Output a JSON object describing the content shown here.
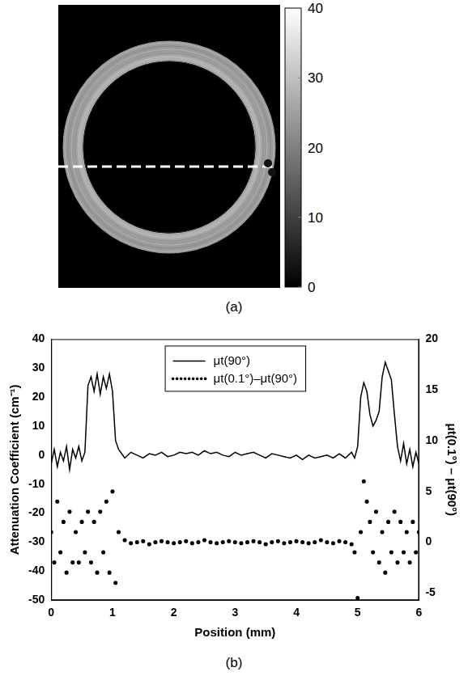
{
  "figure": {
    "panel_labels": [
      "(a)",
      "(b)"
    ]
  },
  "image": {
    "colorbar": {
      "range": [
        0,
        40
      ],
      "ticks": [
        0,
        10,
        20,
        30,
        40
      ]
    }
  },
  "chart_data": {
    "type": "line",
    "xlabel": "Position (mm)",
    "ylabel": "Attenuation Coefficient (cm⁻¹)",
    "y2label": "μt(0.1°) – μt(90°)",
    "xlim": [
      0,
      6
    ],
    "xticks": [
      0,
      1,
      2,
      3,
      4,
      5,
      6
    ],
    "ylim": [
      -50,
      40
    ],
    "yticks": [
      -50,
      -40,
      -30,
      -20,
      -10,
      0,
      10,
      20,
      30,
      40
    ],
    "y2lim": [
      -5.71,
      20
    ],
    "y2ticks": [
      -5,
      0,
      5,
      10,
      15,
      20
    ],
    "grid": false,
    "legend": "top",
    "series": [
      {
        "name": "μt(90°)",
        "color": "#000000",
        "line_style": "solid",
        "marker": "none",
        "x": [
          0,
          0.05,
          0.1,
          0.15,
          0.2,
          0.25,
          0.3,
          0.35,
          0.4,
          0.45,
          0.5,
          0.55,
          0.6,
          0.65,
          0.7,
          0.75,
          0.8,
          0.85,
          0.9,
          0.95,
          1.0,
          1.05,
          1.1,
          1.2,
          1.3,
          1.4,
          1.5,
          1.6,
          1.7,
          1.8,
          1.9,
          2.0,
          2.1,
          2.2,
          2.3,
          2.4,
          2.5,
          2.6,
          2.7,
          2.8,
          2.9,
          3.0,
          3.1,
          3.2,
          3.3,
          3.4,
          3.5,
          3.6,
          3.7,
          3.8,
          3.9,
          4.0,
          4.1,
          4.2,
          4.3,
          4.4,
          4.5,
          4.6,
          4.7,
          4.8,
          4.9,
          4.95,
          5.0,
          5.05,
          5.1,
          5.15,
          5.2,
          5.25,
          5.3,
          5.35,
          5.4,
          5.45,
          5.5,
          5.55,
          5.6,
          5.65,
          5.7,
          5.75,
          5.8,
          5.85,
          5.9,
          5.95,
          6.0
        ],
        "values": [
          -3,
          2,
          -4,
          1,
          -2,
          3,
          -5,
          2,
          -1,
          3,
          -2,
          1,
          24,
          27,
          22,
          28,
          21,
          27,
          23,
          28,
          22,
          5,
          2,
          -1,
          1,
          0,
          -1,
          0.5,
          0,
          1,
          -0.5,
          0,
          1,
          0.5,
          1,
          0,
          1.5,
          0.5,
          1,
          0,
          -0.5,
          1,
          0,
          0.5,
          1,
          0,
          -1,
          0.5,
          0,
          -0.5,
          -1,
          0,
          -1.5,
          0,
          -1,
          -0.5,
          0,
          -1,
          0.5,
          -1,
          1,
          -1,
          3,
          20,
          25,
          22,
          14,
          10,
          12,
          15,
          27,
          32,
          29,
          26,
          14,
          3,
          -2,
          4,
          -3,
          2,
          -4,
          1,
          -3
        ]
      },
      {
        "name": "μt(0.1°)–μt(90°)",
        "color": "#000000",
        "line_style": "none",
        "marker": "dot",
        "axis": "y2",
        "x": [
          0,
          0.05,
          0.1,
          0.15,
          0.2,
          0.25,
          0.3,
          0.35,
          0.4,
          0.45,
          0.5,
          0.55,
          0.6,
          0.65,
          0.7,
          0.75,
          0.8,
          0.85,
          0.9,
          0.95,
          1.0,
          1.05,
          1.1,
          1.2,
          1.3,
          1.4,
          1.5,
          1.6,
          1.7,
          1.8,
          1.9,
          2.0,
          2.1,
          2.2,
          2.3,
          2.4,
          2.5,
          2.6,
          2.7,
          2.8,
          2.9,
          3.0,
          3.1,
          3.2,
          3.3,
          3.4,
          3.5,
          3.6,
          3.7,
          3.8,
          3.9,
          4.0,
          4.1,
          4.2,
          4.3,
          4.4,
          4.5,
          4.6,
          4.7,
          4.8,
          4.9,
          4.95,
          5.0,
          5.05,
          5.1,
          5.15,
          5.2,
          5.25,
          5.3,
          5.35,
          5.4,
          5.45,
          5.5,
          5.55,
          5.6,
          5.65,
          5.7,
          5.75,
          5.8,
          5.85,
          5.9,
          5.95,
          6.0
        ],
        "values": [
          1,
          -2,
          4,
          -1,
          2,
          -3,
          3,
          -2,
          1,
          -2,
          2,
          -1,
          3,
          -2,
          2,
          -3,
          3,
          -1,
          4,
          -3,
          5,
          -4,
          1,
          0.2,
          -0.1,
          0,
          0.1,
          -0.2,
          0,
          0.1,
          0,
          -0.1,
          0,
          0.1,
          -0.1,
          0,
          0.2,
          0,
          -0.1,
          0,
          0.1,
          0,
          -0.1,
          0,
          0.1,
          0,
          -0.2,
          0,
          0.1,
          -0.1,
          0,
          0.1,
          0,
          -0.1,
          0,
          0.2,
          0,
          -0.1,
          0.1,
          0,
          -0.2,
          -1,
          -5.5,
          1,
          6,
          4,
          2,
          -1,
          3,
          -2,
          1,
          -3,
          2,
          -1,
          3,
          -2,
          2,
          -1,
          1,
          -2,
          2,
          -1,
          1
        ]
      }
    ]
  }
}
